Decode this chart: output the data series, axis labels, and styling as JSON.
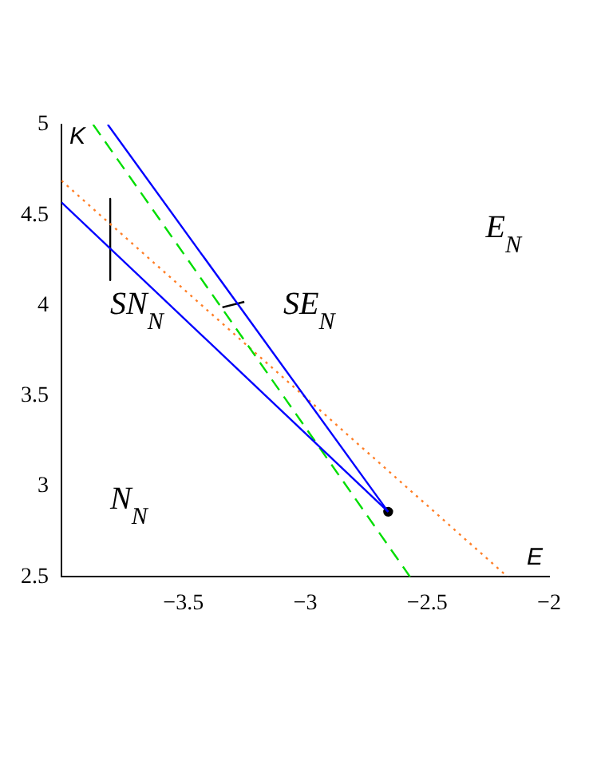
{
  "chart_data": {
    "type": "line",
    "xlabel": "E",
    "ylabel": "K",
    "xlim": [
      -4,
      -2
    ],
    "ylim": [
      2.5,
      5
    ],
    "xticks": [
      {
        "value": -3.5,
        "label": "−3.5"
      },
      {
        "value": -3,
        "label": "−3"
      },
      {
        "value": -2.5,
        "label": "−2.5"
      },
      {
        "value": -2,
        "label": "−2"
      }
    ],
    "yticks": [
      2.5,
      3,
      3.5,
      4,
      4.5,
      5
    ],
    "grid": false,
    "legend": false,
    "marker": "none",
    "series": [
      {
        "color": "#0000ff",
        "line_style": "solid",
        "x": [
          -3.81,
          -2.66
        ],
        "values": [
          5,
          2.86
        ]
      },
      {
        "color": "#0000ff",
        "line_style": "solid",
        "x": [
          -4,
          -2.66
        ],
        "values": [
          4.57,
          2.86
        ]
      },
      {
        "color": "#00dd00",
        "line_style": "dashed",
        "x": [
          -3.87,
          -2.57
        ],
        "values": [
          5,
          2.5
        ]
      },
      {
        "color": "#ff7f27",
        "line_style": "dotted",
        "x": [
          -4,
          -2.17
        ],
        "values": [
          4.69,
          2.5
        ]
      },
      {
        "color": "#000000",
        "line_style": "solid",
        "x": [
          -3.8,
          -3.8
        ],
        "values": [
          4.59,
          4.14
        ]
      },
      {
        "color": "#000000",
        "line_style": "solid",
        "x": [
          -3.34,
          -3.25
        ],
        "values": [
          3.99,
          4.02
        ]
      },
      {
        "type": "scatter",
        "color": "#000000",
        "marker": "circle",
        "x": [
          -2.66
        ],
        "values": [
          2.86
        ]
      }
    ],
    "annotations": [
      "SN$_{N}$",
      "SE$_{N}$",
      "E$_{N}$",
      "N$_{N}$"
    ]
  }
}
